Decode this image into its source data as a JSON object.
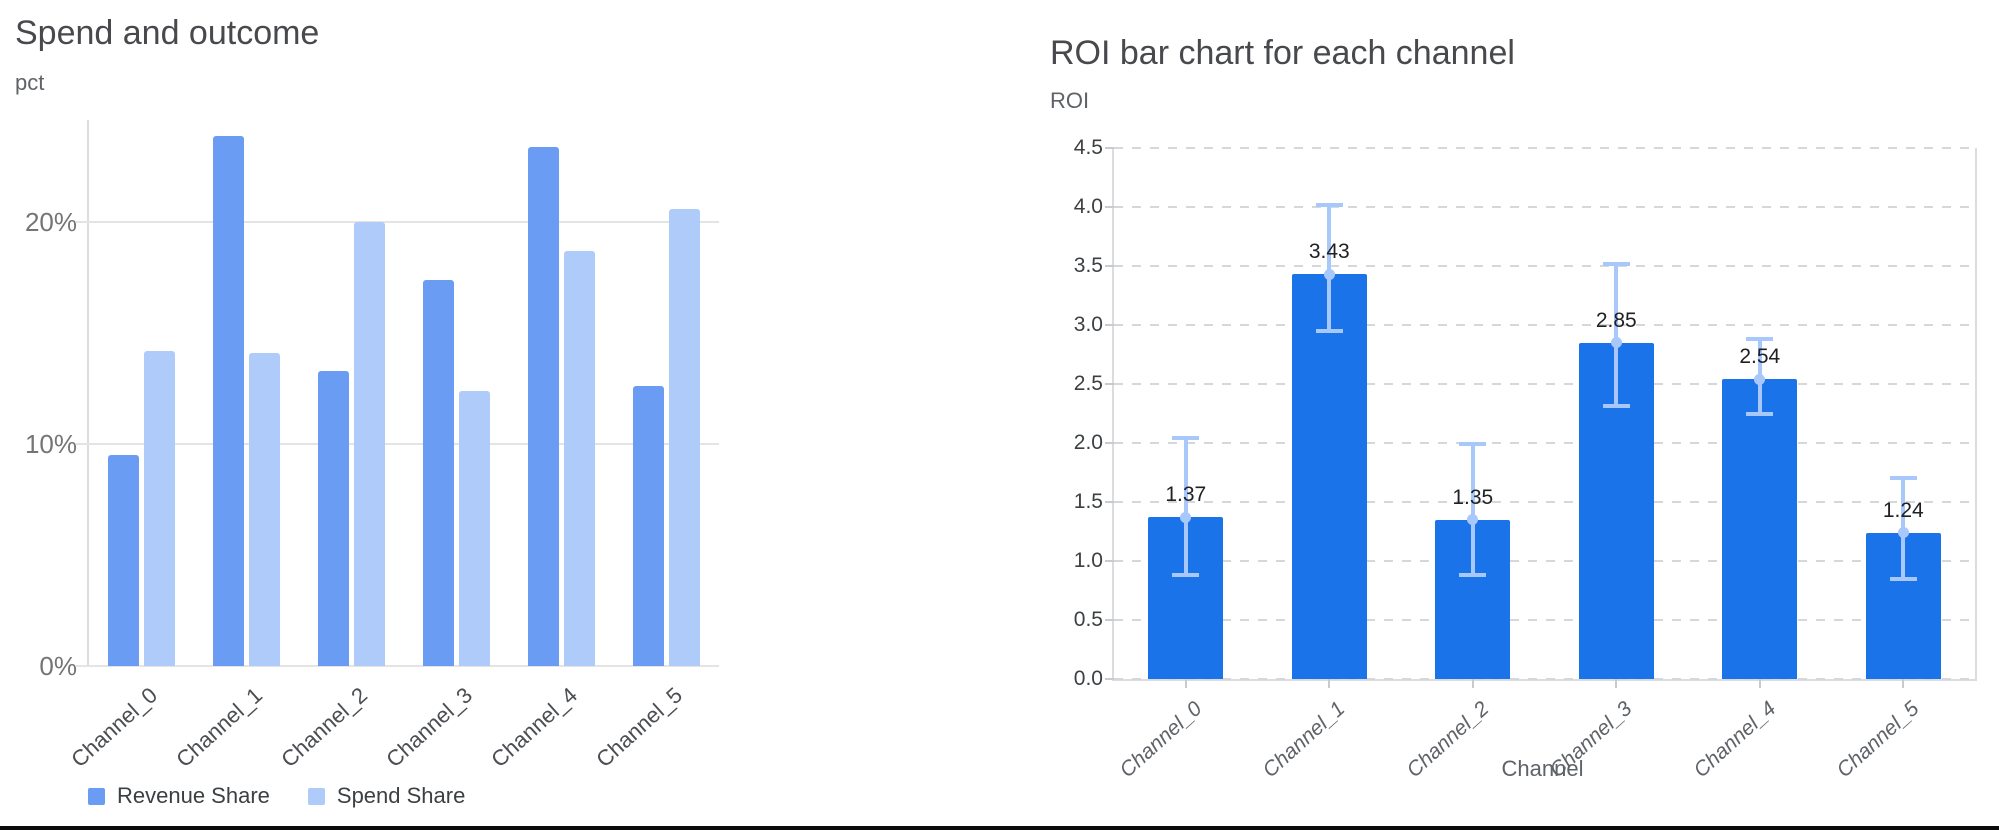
{
  "page": {
    "background": "#ffffff",
    "bottom_rule_color": "#0b0b0b"
  },
  "chart_data": [
    {
      "type": "bar",
      "title": "Spend and outcome",
      "xlabel": "",
      "ylabel": "pct",
      "categories": [
        "Channel_0",
        "Channel_1",
        "Channel_2",
        "Channel_3",
        "Channel_4",
        "Channel_5"
      ],
      "series": [
        {
          "name": "Revenue Share",
          "color": "#6a9cf4",
          "values": [
            9.5,
            23.9,
            13.3,
            17.4,
            23.4,
            12.6
          ]
        },
        {
          "name": "Spend Share",
          "color": "#aecbfa",
          "values": [
            14.2,
            14.1,
            20.0,
            12.4,
            18.7,
            20.6
          ]
        }
      ],
      "value_format": "percent",
      "y_ticks": [
        "0%",
        "10%",
        "20%"
      ],
      "y_tick_values": [
        0,
        10,
        20
      ],
      "ylim": [
        0,
        24.6
      ],
      "grid": "solid",
      "legend_position": "bottom-left"
    },
    {
      "type": "bar",
      "title": "ROI bar chart for each channel",
      "xlabel": "Channel",
      "ylabel": "ROI",
      "categories": [
        "Channel_0",
        "Channel_1",
        "Channel_2",
        "Channel_3",
        "Channel_4",
        "Channel_5"
      ],
      "values": [
        1.37,
        3.43,
        1.35,
        2.85,
        2.54,
        1.24
      ],
      "data_labels": [
        "1.37",
        "3.43",
        "1.35",
        "2.85",
        "2.54",
        "1.24"
      ],
      "error_low": [
        0.88,
        2.95,
        0.88,
        2.31,
        2.25,
        0.85
      ],
      "error_high": [
        2.04,
        4.02,
        1.99,
        3.52,
        2.88,
        1.7
      ],
      "bar_color": "#1a73e8",
      "error_color": "#a8c7fa",
      "y_ticks": [
        "0.0",
        "0.5",
        "1.0",
        "1.5",
        "2.0",
        "2.5",
        "3.0",
        "3.5",
        "4.0",
        "4.5"
      ],
      "y_tick_values": [
        0,
        0.5,
        1.0,
        1.5,
        2.0,
        2.5,
        3.0,
        3.5,
        4.0,
        4.5
      ],
      "ylim": [
        0,
        4.5
      ],
      "grid": "dashed",
      "legend_position": "none"
    }
  ]
}
